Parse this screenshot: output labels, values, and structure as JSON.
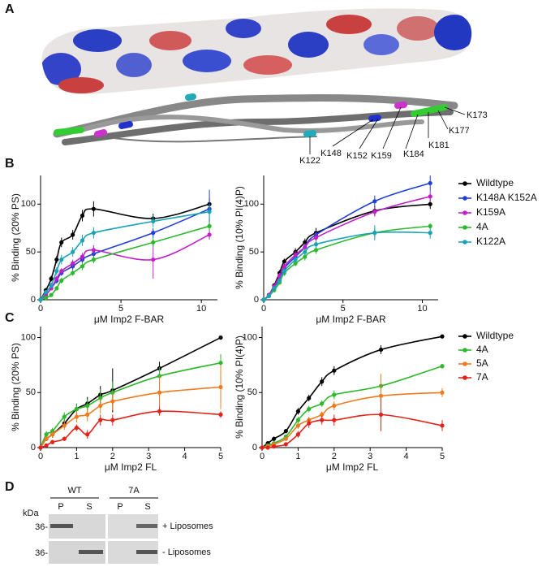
{
  "panel_labels": [
    "A",
    "B",
    "C",
    "D"
  ],
  "structure_labels": [
    "K173",
    "K177",
    "K181",
    "K184",
    "K159",
    "K152",
    "K148",
    "K122"
  ],
  "chart_data": [
    {
      "type": "line",
      "ylabel": "% Binding (20% PS)",
      "xlabel": "μM Imp2 F-BAR",
      "xlim": [
        0,
        11
      ],
      "ylim": [
        0,
        130
      ],
      "xticks": [
        0,
        5,
        10
      ],
      "yticks": [
        0,
        50,
        100
      ],
      "x": [
        0,
        0.33,
        0.66,
        1.0,
        1.3,
        2.0,
        2.6,
        3.3,
        7.0,
        10.5
      ],
      "series": [
        {
          "color": "#000000",
          "values": [
            0,
            10,
            22,
            42,
            60,
            68,
            88,
            95,
            85,
            100
          ],
          "errors": [
            0,
            2,
            3,
            4,
            5,
            5,
            6,
            8,
            5,
            6
          ]
        },
        {
          "color": "#1f3fd6",
          "values": [
            0,
            5,
            12,
            20,
            28,
            35,
            42,
            48,
            70,
            95
          ],
          "errors": [
            0,
            2,
            2,
            3,
            3,
            4,
            4,
            5,
            5,
            20
          ]
        },
        {
          "color": "#c21fc9",
          "values": [
            0,
            5,
            12,
            22,
            30,
            38,
            45,
            52,
            42,
            68
          ],
          "errors": [
            0,
            2,
            2,
            3,
            3,
            4,
            4,
            5,
            20,
            5
          ]
        },
        {
          "color": "#2db82d",
          "values": [
            0,
            2,
            5,
            12,
            20,
            28,
            35,
            42,
            60,
            77
          ],
          "errors": [
            0,
            1,
            2,
            2,
            3,
            3,
            4,
            4,
            5,
            5
          ]
        },
        {
          "color": "#1aa3b8",
          "values": [
            0,
            8,
            15,
            30,
            42,
            50,
            62,
            70,
            82,
            92
          ],
          "errors": [
            0,
            2,
            3,
            4,
            5,
            5,
            6,
            6,
            6,
            8
          ]
        }
      ]
    },
    {
      "type": "line",
      "ylabel": "% Binding (10% PI(4)P)",
      "xlabel": "μM Imp2 F-BAR",
      "xlim": [
        0,
        11
      ],
      "ylim": [
        0,
        130
      ],
      "xticks": [
        0,
        5,
        10
      ],
      "yticks": [
        0,
        50,
        100
      ],
      "legend": "right",
      "x": [
        0,
        0.33,
        0.66,
        1.0,
        1.3,
        2.0,
        2.6,
        3.3,
        7.0,
        10.5
      ],
      "series": [
        {
          "name": "Wildtype",
          "color": "#000000",
          "values": [
            0,
            5,
            15,
            28,
            40,
            50,
            60,
            70,
            93,
            100
          ],
          "errors": [
            0,
            1,
            2,
            3,
            3,
            4,
            4,
            5,
            5,
            5
          ]
        },
        {
          "name": "K148A K152A",
          "color": "#1f3fd6",
          "values": [
            0,
            4,
            12,
            22,
            33,
            45,
            55,
            68,
            103,
            122
          ],
          "errors": [
            0,
            1,
            2,
            3,
            3,
            4,
            4,
            5,
            6,
            8
          ]
        },
        {
          "name": "K159A",
          "color": "#c21fc9",
          "values": [
            0,
            5,
            14,
            25,
            35,
            47,
            55,
            65,
            92,
            108
          ],
          "errors": [
            0,
            1,
            2,
            3,
            3,
            4,
            4,
            5,
            5,
            6
          ]
        },
        {
          "name": "4A",
          "color": "#2db82d",
          "values": [
            0,
            4,
            10,
            18,
            28,
            38,
            45,
            52,
            70,
            77
          ],
          "errors": [
            0,
            1,
            2,
            2,
            3,
            3,
            4,
            4,
            5,
            3
          ]
        },
        {
          "name": "K122A",
          "color": "#1aa3b8",
          "values": [
            0,
            4,
            12,
            20,
            30,
            42,
            50,
            58,
            70,
            70
          ],
          "errors": [
            0,
            1,
            2,
            2,
            3,
            3,
            4,
            4,
            8,
            6
          ]
        }
      ]
    },
    {
      "type": "line",
      "ylabel": "% Binding (20% PS)",
      "xlabel": "μM Imp2 FL",
      "xlim": [
        0,
        5
      ],
      "ylim": [
        0,
        110
      ],
      "xticks": [
        0,
        1,
        2,
        3,
        4,
        5
      ],
      "yticks": [
        0,
        50,
        100
      ],
      "x": [
        0,
        0.16,
        0.33,
        0.66,
        1.0,
        1.3,
        1.66,
        2.0,
        3.3,
        5.0
      ],
      "series": [
        {
          "color": "#000000",
          "values": [
            0,
            8,
            12,
            22,
            35,
            40,
            48,
            52,
            72,
            100
          ],
          "errors": [
            0,
            2,
            3,
            4,
            5,
            6,
            8,
            20,
            6,
            2
          ]
        },
        {
          "color": "#2db82d",
          "values": [
            0,
            12,
            15,
            28,
            35,
            38,
            45,
            50,
            65,
            77
          ],
          "errors": [
            0,
            3,
            3,
            4,
            5,
            6,
            8,
            10,
            8,
            8
          ]
        },
        {
          "color": "#f07b1f",
          "values": [
            0,
            8,
            12,
            20,
            28,
            30,
            38,
            42,
            50,
            55
          ],
          "errors": [
            0,
            2,
            3,
            4,
            5,
            6,
            7,
            8,
            15,
            20
          ]
        },
        {
          "color": "#e0241b",
          "values": [
            0,
            2,
            5,
            8,
            18,
            12,
            25,
            25,
            33,
            30
          ],
          "errors": [
            0,
            1,
            2,
            2,
            3,
            4,
            5,
            5,
            4,
            3
          ]
        }
      ]
    },
    {
      "type": "line",
      "ylabel": "% Binding (10% PI(4)P)",
      "xlabel": "μM Imp2 FL",
      "xlim": [
        0,
        5
      ],
      "ylim": [
        0,
        110
      ],
      "xticks": [
        0,
        1,
        2,
        3,
        4,
        5
      ],
      "yticks": [
        0,
        50,
        100
      ],
      "legend": "right",
      "x": [
        0,
        0.16,
        0.33,
        0.66,
        1.0,
        1.3,
        1.66,
        2.0,
        3.3,
        5.0
      ],
      "series": [
        {
          "name": "Wildtype",
          "color": "#000000",
          "values": [
            0,
            4,
            8,
            15,
            33,
            45,
            60,
            70,
            89,
            101
          ],
          "errors": [
            0,
            1,
            2,
            2,
            3,
            3,
            4,
            4,
            4,
            2
          ]
        },
        {
          "name": "4A",
          "color": "#2db82d",
          "values": [
            0,
            2,
            4,
            10,
            25,
            35,
            40,
            48,
            56,
            74
          ],
          "errors": [
            0,
            1,
            1,
            2,
            3,
            3,
            3,
            4,
            2,
            2
          ]
        },
        {
          "name": "5A",
          "color": "#f07b1f",
          "values": [
            0,
            1,
            3,
            8,
            20,
            25,
            30,
            38,
            47,
            50
          ],
          "errors": [
            0,
            1,
            1,
            2,
            3,
            3,
            3,
            4,
            20,
            4
          ]
        },
        {
          "name": "7A",
          "color": "#e0241b",
          "values": [
            0,
            0,
            1,
            3,
            12,
            22,
            25,
            25,
            30,
            20
          ],
          "errors": [
            0,
            1,
            1,
            2,
            3,
            4,
            4,
            5,
            15,
            5
          ]
        }
      ]
    }
  ],
  "gel": {
    "groups": [
      "WT",
      "7A"
    ],
    "lanes": [
      "P",
      "S",
      "P",
      "S"
    ],
    "unit": "kDa",
    "markers": [
      "36-",
      "36-"
    ],
    "conditions": [
      "+ Liposomes",
      "- Liposomes"
    ]
  }
}
